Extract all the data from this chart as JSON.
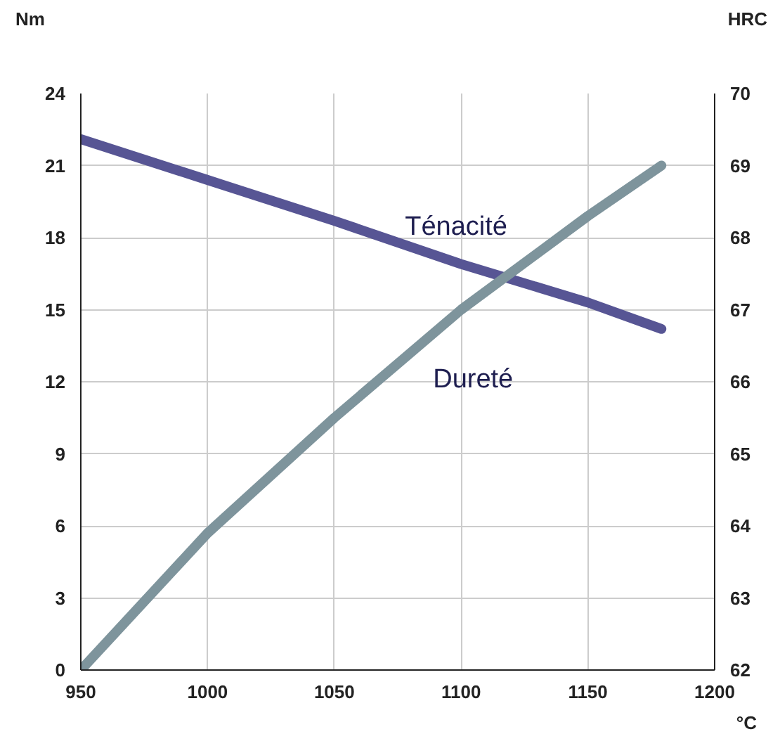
{
  "chart_data": {
    "type": "line",
    "xlabel": "°C",
    "ylabel": "Nm",
    "y2label": "HRC",
    "xlim": [
      950,
      1200
    ],
    "xticks": [
      950,
      1000,
      1050,
      1100,
      1150,
      1200
    ],
    "ylim": [
      0,
      24
    ],
    "yticks": [
      0,
      3,
      6,
      9,
      12,
      15,
      18,
      21,
      24
    ],
    "y2lim": [
      62,
      70
    ],
    "y2ticks": [
      62,
      63,
      64,
      65,
      66,
      67,
      68,
      69,
      70
    ],
    "grid": true,
    "marker": "none",
    "line_style": "solid",
    "series": [
      {
        "name": "Ténacité",
        "color": "#575594",
        "x": [
          950,
          1000,
          1050,
          1100,
          1150,
          1179
        ],
        "values": [
          22.1,
          20.4,
          18.7,
          16.9,
          15.3,
          14.2
        ]
      },
      {
        "name": "Dureté",
        "color": "#7e949c",
        "axis": "y2",
        "x": [
          950,
          1000,
          1050,
          1100,
          1150,
          1179
        ],
        "values": [
          62.0,
          63.9,
          65.5,
          67.0,
          68.3,
          69.0
        ]
      }
    ]
  }
}
